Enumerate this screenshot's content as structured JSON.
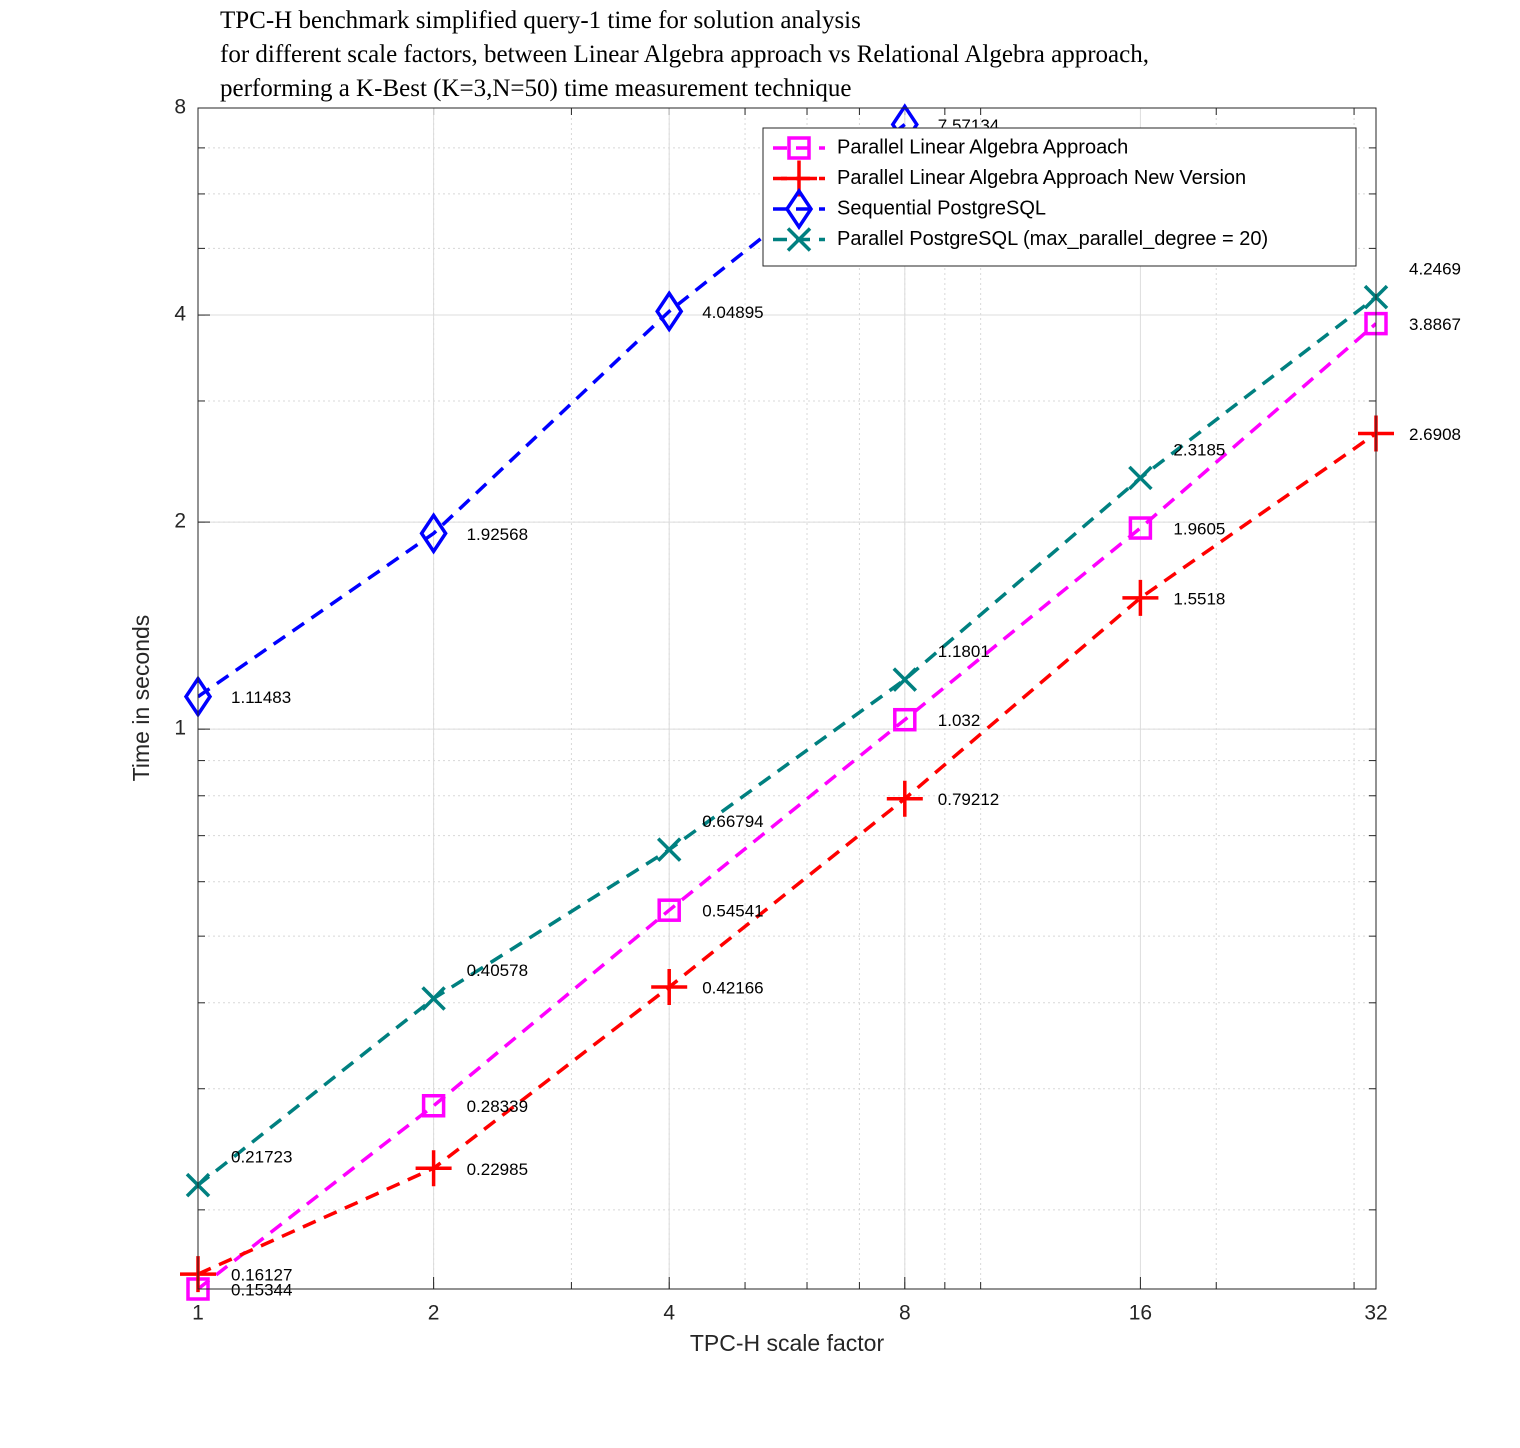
{
  "chart_data": {
    "type": "line",
    "title": [
      "TPC-H benchmark simplified query-1 time for solution analysis",
      "for different scale factors, between Linear Algebra approach vs Relational Algebra approach,",
      "performing a K-Best (K=3,N=50) time measurement technique"
    ],
    "x_label": "TPC-H scale factor",
    "y_label": "Time in seconds",
    "x": [
      1,
      2,
      4,
      8,
      16,
      32
    ],
    "xlim": [
      1,
      32
    ],
    "xticks": [
      1,
      2,
      4,
      8,
      16,
      32
    ],
    "xscale": "log",
    "ylim": [
      0.15344,
      8
    ],
    "yticks": [
      1,
      2,
      4,
      8
    ],
    "yscale": "log",
    "grid": true,
    "legend": "upper right",
    "series": [
      {
        "name": "Parallel Linear Algebra Approach",
        "color": "#ff00ff",
        "marker": "square",
        "values": [
          0.15344,
          0.28339,
          0.54541,
          1.032,
          1.9605,
          3.8867
        ]
      },
      {
        "name": "Parallel Linear Algebra Approach New Version",
        "color": "#ff0000",
        "marker": "plus",
        "values": [
          0.16127,
          0.22985,
          0.42166,
          0.79212,
          1.5518,
          2.6908
        ]
      },
      {
        "name": "Sequential PostgreSQL",
        "color": "#0000ff",
        "marker": "diamond",
        "values": [
          1.11483,
          1.92568,
          4.04895,
          7.57134,
          null,
          null
        ]
      },
      {
        "name": "Parallel PostgreSQL (max_parallel_degree = 20)",
        "color": "#008080",
        "marker": "x",
        "values": [
          0.21723,
          0.40578,
          0.66794,
          1.1801,
          2.3185,
          4.2469
        ]
      }
    ]
  }
}
